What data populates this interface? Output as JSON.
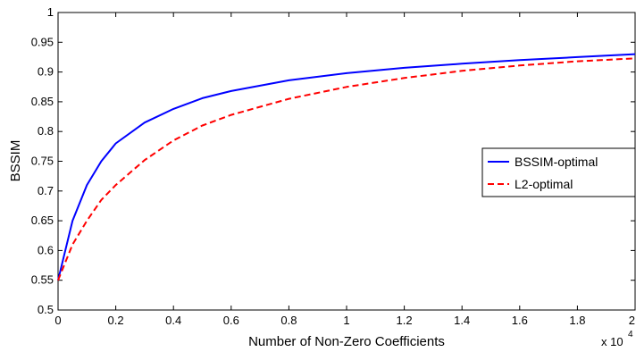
{
  "chart_data": {
    "type": "line",
    "xlabel": "Number of Non-Zero Coefficients",
    "ylabel": "BSSIM",
    "x_multiplier": "x 10",
    "x_multiplier_exp": "4",
    "xlim": [
      0,
      2
    ],
    "ylim": [
      0.5,
      1
    ],
    "xticks": [
      "0",
      "0.2",
      "0.4",
      "0.6",
      "0.8",
      "1",
      "1.2",
      "1.4",
      "1.6",
      "1.8",
      "2"
    ],
    "yticks": [
      "0.5",
      "0.55",
      "0.6",
      "0.65",
      "0.7",
      "0.75",
      "0.8",
      "0.85",
      "0.9",
      "0.95",
      "1"
    ],
    "legend_position": "right",
    "grid": false,
    "series": [
      {
        "name": "BSSIM-optimal",
        "color": "#0000ff",
        "style": "solid",
        "x": [
          0,
          0.05,
          0.1,
          0.15,
          0.2,
          0.3,
          0.4,
          0.5,
          0.6,
          0.8,
          1.0,
          1.2,
          1.4,
          1.6,
          1.8,
          2.0
        ],
        "y": [
          0.55,
          0.65,
          0.71,
          0.75,
          0.78,
          0.815,
          0.838,
          0.856,
          0.868,
          0.886,
          0.898,
          0.907,
          0.914,
          0.92,
          0.925,
          0.93
        ]
      },
      {
        "name": "L2-optimal",
        "color": "#ff0000",
        "style": "dashed",
        "x": [
          0,
          0.05,
          0.1,
          0.15,
          0.2,
          0.3,
          0.4,
          0.5,
          0.6,
          0.8,
          1.0,
          1.2,
          1.4,
          1.6,
          1.8,
          2.0
        ],
        "y": [
          0.55,
          0.61,
          0.65,
          0.685,
          0.71,
          0.752,
          0.785,
          0.81,
          0.828,
          0.855,
          0.875,
          0.89,
          0.902,
          0.911,
          0.918,
          0.923
        ]
      }
    ]
  }
}
